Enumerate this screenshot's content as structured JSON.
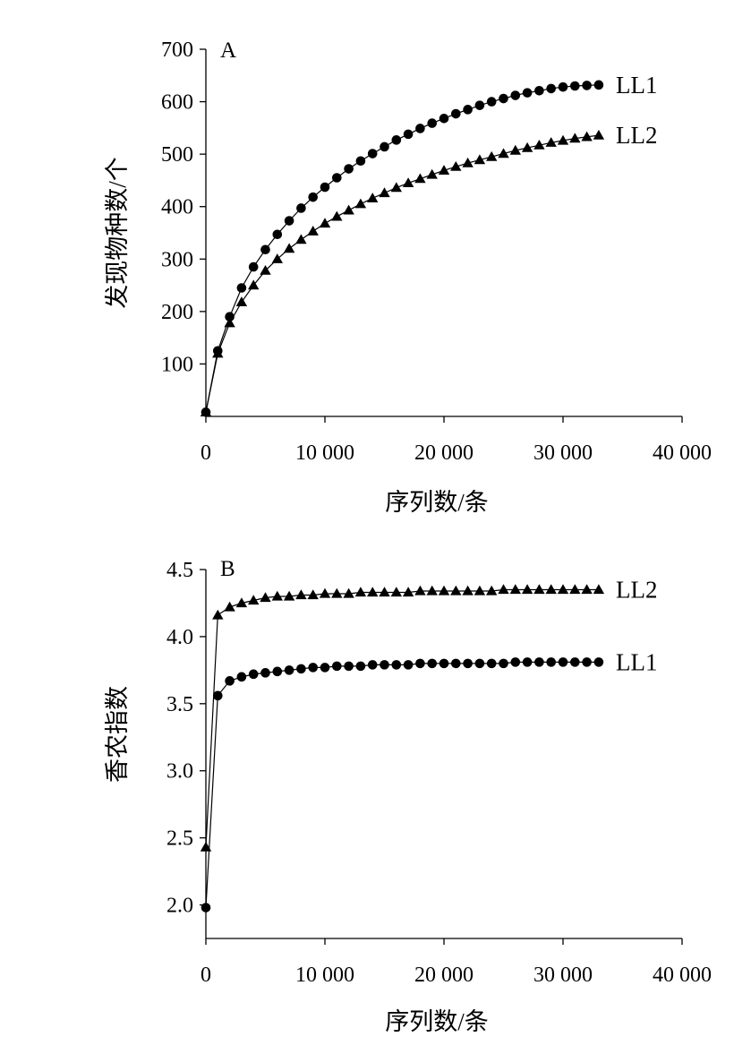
{
  "chart_data": [
    {
      "panel": "A",
      "type": "line",
      "xlabel": "序列数/条",
      "ylabel": "发现物种数/个",
      "xlim": [
        0,
        40000
      ],
      "ylim": [
        0,
        700
      ],
      "xticks": [
        0,
        10000,
        20000,
        30000,
        40000
      ],
      "xtick_labels": [
        "0",
        "10 000",
        "20 000",
        "30 000",
        "40 000"
      ],
      "yticks": [
        100,
        200,
        300,
        400,
        500,
        600,
        700
      ],
      "ytick_labels": [
        "100",
        "200",
        "300",
        "400",
        "500",
        "600",
        "700"
      ],
      "grid": false,
      "series": [
        {
          "name": "LL1",
          "marker": "circle",
          "x": [
            0,
            1000,
            2000,
            3000,
            4000,
            5000,
            6000,
            7000,
            8000,
            9000,
            10000,
            11000,
            12000,
            13000,
            14000,
            15000,
            16000,
            17000,
            18000,
            19000,
            20000,
            21000,
            22000,
            23000,
            24000,
            25000,
            26000,
            27000,
            28000,
            29000,
            30000,
            31000,
            32000,
            33000
          ],
          "y": [
            8,
            125,
            190,
            245,
            285,
            318,
            347,
            373,
            397,
            418,
            437,
            455,
            472,
            487,
            501,
            514,
            527,
            538,
            549,
            559,
            568,
            577,
            585,
            593,
            600,
            606,
            612,
            617,
            621,
            625,
            628,
            630,
            631,
            632
          ]
        },
        {
          "name": "LL2",
          "marker": "triangle",
          "x": [
            0,
            1000,
            2000,
            3000,
            4000,
            5000,
            6000,
            7000,
            8000,
            9000,
            10000,
            11000,
            12000,
            13000,
            14000,
            15000,
            16000,
            17000,
            18000,
            19000,
            20000,
            21000,
            22000,
            23000,
            24000,
            25000,
            26000,
            27000,
            28000,
            29000,
            30000,
            31000,
            32000,
            33000
          ],
          "y": [
            8,
            120,
            178,
            218,
            250,
            278,
            300,
            320,
            337,
            353,
            368,
            381,
            393,
            405,
            416,
            426,
            436,
            445,
            453,
            461,
            469,
            476,
            483,
            489,
            495,
            501,
            507,
            512,
            517,
            522,
            526,
            530,
            533,
            536
          ]
        }
      ]
    },
    {
      "panel": "B",
      "type": "line",
      "xlabel": "序列数/条",
      "ylabel": "香农指数",
      "xlim": [
        0,
        40000
      ],
      "ylim": [
        1.75,
        4.5
      ],
      "xticks": [
        0,
        10000,
        20000,
        30000,
        40000
      ],
      "xtick_labels": [
        "0",
        "10 000",
        "20 000",
        "30 000",
        "40 000"
      ],
      "yticks": [
        2.0,
        2.5,
        3.0,
        3.5,
        4.0,
        4.5
      ],
      "ytick_labels": [
        "2.0",
        "2.5",
        "3.0",
        "3.5",
        "4.0",
        "4.5"
      ],
      "grid": false,
      "series": [
        {
          "name": "LL2",
          "marker": "triangle",
          "x": [
            0,
            1000,
            2000,
            3000,
            4000,
            5000,
            6000,
            7000,
            8000,
            9000,
            10000,
            11000,
            12000,
            13000,
            14000,
            15000,
            16000,
            17000,
            18000,
            19000,
            20000,
            21000,
            22000,
            23000,
            24000,
            25000,
            26000,
            27000,
            28000,
            29000,
            30000,
            31000,
            32000,
            33000
          ],
          "y": [
            2.43,
            4.16,
            4.22,
            4.25,
            4.27,
            4.29,
            4.3,
            4.3,
            4.31,
            4.31,
            4.32,
            4.32,
            4.32,
            4.33,
            4.33,
            4.33,
            4.33,
            4.33,
            4.34,
            4.34,
            4.34,
            4.34,
            4.34,
            4.34,
            4.34,
            4.35,
            4.35,
            4.35,
            4.35,
            4.35,
            4.35,
            4.35,
            4.35,
            4.35
          ]
        },
        {
          "name": "LL1",
          "marker": "circle",
          "x": [
            0,
            1000,
            2000,
            3000,
            4000,
            5000,
            6000,
            7000,
            8000,
            9000,
            10000,
            11000,
            12000,
            13000,
            14000,
            15000,
            16000,
            17000,
            18000,
            19000,
            20000,
            21000,
            22000,
            23000,
            24000,
            25000,
            26000,
            27000,
            28000,
            29000,
            30000,
            31000,
            32000,
            33000
          ],
          "y": [
            1.98,
            3.56,
            3.67,
            3.7,
            3.72,
            3.73,
            3.74,
            3.75,
            3.76,
            3.77,
            3.77,
            3.78,
            3.78,
            3.78,
            3.79,
            3.79,
            3.79,
            3.79,
            3.8,
            3.8,
            3.8,
            3.8,
            3.8,
            3.8,
            3.8,
            3.8,
            3.81,
            3.81,
            3.81,
            3.81,
            3.81,
            3.81,
            3.81,
            3.81
          ]
        }
      ]
    }
  ]
}
